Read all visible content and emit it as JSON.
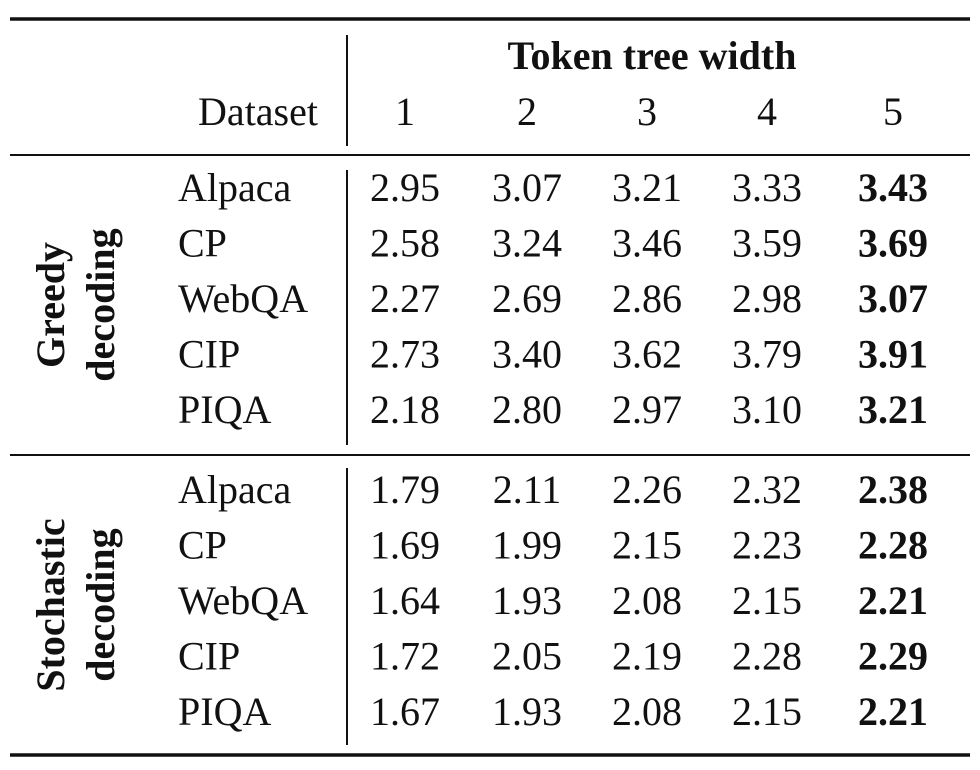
{
  "table": {
    "header": {
      "group": "Token tree width",
      "dataset": "Dataset",
      "columns": [
        1,
        2,
        3,
        4,
        5
      ]
    },
    "sections": [
      {
        "label": [
          "Greedy",
          "decoding"
        ],
        "rows": [
          {
            "dataset": "Alpaca",
            "values": [
              "2.95",
              "3.07",
              "3.21",
              "3.33",
              "3.43"
            ]
          },
          {
            "dataset": "CP",
            "values": [
              "2.58",
              "3.24",
              "3.46",
              "3.59",
              "3.69"
            ]
          },
          {
            "dataset": "WebQA",
            "values": [
              "2.27",
              "2.69",
              "2.86",
              "2.98",
              "3.07"
            ]
          },
          {
            "dataset": "CIP",
            "values": [
              "2.73",
              "3.40",
              "3.62",
              "3.79",
              "3.91"
            ]
          },
          {
            "dataset": "PIQA",
            "values": [
              "2.18",
              "2.80",
              "2.97",
              "3.10",
              "3.21"
            ]
          }
        ]
      },
      {
        "label": [
          "Stochastic",
          "decoding"
        ],
        "rows": [
          {
            "dataset": "Alpaca",
            "values": [
              "1.79",
              "2.11",
              "2.26",
              "2.32",
              "2.38"
            ]
          },
          {
            "dataset": "CP",
            "values": [
              "1.69",
              "1.99",
              "2.15",
              "2.23",
              "2.28"
            ]
          },
          {
            "dataset": "WebQA",
            "values": [
              "1.64",
              "1.93",
              "2.08",
              "2.15",
              "2.21"
            ]
          },
          {
            "dataset": "CIP",
            "values": [
              "1.72",
              "2.05",
              "2.19",
              "2.28",
              "2.29"
            ]
          },
          {
            "dataset": "PIQA",
            "values": [
              "1.67",
              "1.93",
              "2.08",
              "2.15",
              "2.21"
            ]
          }
        ]
      }
    ]
  }
}
